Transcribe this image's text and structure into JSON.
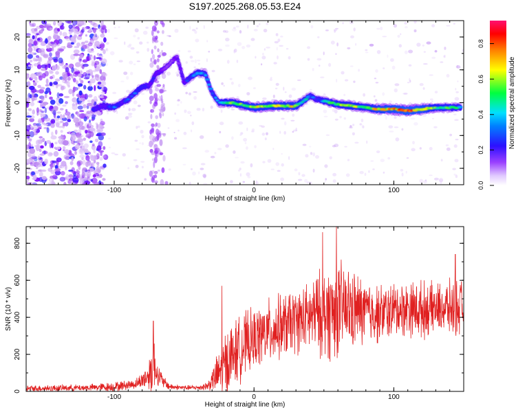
{
  "figure": {
    "title": "S197.2025.268.05.53.E24"
  },
  "colors": {
    "snr_line": "#e02020",
    "colormap": [
      "#f2e6ff",
      "#c090f0",
      "#7a00ff",
      "#2020ff",
      "#00c8ff",
      "#00ff40",
      "#ffff00",
      "#ff8000",
      "#ff0000",
      "#ff1070"
    ]
  },
  "chart_data": [
    {
      "type": "heatmap",
      "name": "spectrogram",
      "xlabel": "Height of straight line (km)",
      "ylabel": "Frequency (Hz)",
      "xlim": [
        -163,
        150
      ],
      "ylim": [
        -25,
        25
      ],
      "xticks": [
        -100,
        0,
        100
      ],
      "xtick_labels": [
        "-100",
        "0",
        "100"
      ],
      "yticks": [
        -20,
        -10,
        0,
        10,
        20
      ],
      "ytick_labels": [
        "-20",
        "-10",
        "0",
        "10",
        "20"
      ],
      "colorbar": {
        "label": "Normalized spectral amplitude",
        "range": [
          0,
          0.93
        ],
        "ticks": [
          0,
          0.2,
          0.4,
          0.6,
          0.8
        ],
        "tick_labels": [
          "0.0",
          "0.2",
          "0.4",
          "0.6",
          "0.8"
        ]
      },
      "ridge": {
        "description": "dominant frequency ridge (Hz) vs height (km) with normalized amplitude",
        "x": [
          -115,
          -108,
          -100,
          -95,
          -90,
          -85,
          -80,
          -75,
          -70,
          -65,
          -60,
          -55,
          -50,
          -45,
          -40,
          -35,
          -30,
          -25,
          -20,
          -15,
          -10,
          -5,
          0,
          10,
          20,
          30,
          40,
          45,
          50,
          60,
          70,
          80,
          90,
          100,
          110,
          120,
          130,
          140,
          148
        ],
        "freq": [
          -2,
          -1,
          -1.5,
          0,
          1,
          3,
          5,
          5,
          9,
          10,
          12,
          14,
          6,
          8,
          9,
          9,
          3,
          0,
          0,
          0,
          -0.5,
          -1,
          -1.5,
          -1,
          -1,
          -1,
          2,
          1,
          0.5,
          -0.5,
          -1,
          -1.5,
          -2,
          -2,
          -2.5,
          -2,
          -1.5,
          -1.5,
          -1.5
        ],
        "amplitude": [
          0.3,
          0.3,
          0.4,
          0.3,
          0.35,
          0.4,
          0.35,
          0.3,
          0.3,
          0.2,
          0.2,
          0.2,
          0.3,
          0.4,
          0.45,
          0.45,
          0.4,
          0.45,
          0.6,
          0.6,
          0.65,
          0.65,
          0.7,
          0.7,
          0.7,
          0.7,
          0.4,
          0.35,
          0.5,
          0.6,
          0.65,
          0.6,
          0.75,
          0.8,
          0.85,
          0.8,
          0.6,
          0.55,
          0.5
        ]
      }
    },
    {
      "type": "line",
      "name": "snr",
      "xlabel": "Height of straight line (km)",
      "ylabel": "SNR (10 * v/v)",
      "xlim": [
        -163,
        150
      ],
      "ylim": [
        0,
        890
      ],
      "xticks": [
        -100,
        0,
        100
      ],
      "xtick_labels": [
        "-100",
        "0",
        "100"
      ],
      "yticks": [
        0,
        200,
        400,
        600,
        800
      ],
      "ytick_labels": [
        "0",
        "200",
        "400",
        "600",
        "800"
      ],
      "envelope": {
        "description": "approximate baseline and oscillation amplitude of the SNR trace",
        "x": [
          -163,
          -140,
          -120,
          -100,
          -85,
          -80,
          -75,
          -72,
          -70,
          -65,
          -60,
          -50,
          -40,
          -33,
          -30,
          -25,
          -20,
          -15,
          -10,
          -5,
          0,
          10,
          20,
          30,
          35,
          40,
          45,
          50,
          55,
          60,
          70,
          80,
          90,
          100,
          110,
          120,
          130,
          140,
          150
        ],
        "base": [
          15,
          18,
          20,
          25,
          40,
          60,
          90,
          150,
          110,
          50,
          25,
          20,
          20,
          30,
          60,
          100,
          150,
          200,
          230,
          260,
          280,
          320,
          350,
          380,
          390,
          400,
          420,
          420,
          430,
          450,
          440,
          430,
          420,
          440,
          450,
          440,
          450,
          450,
          450
        ],
        "amp": [
          20,
          20,
          20,
          30,
          30,
          50,
          100,
          220,
          80,
          40,
          20,
          15,
          15,
          30,
          60,
          150,
          230,
          200,
          200,
          200,
          180,
          200,
          200,
          200,
          200,
          220,
          250,
          280,
          300,
          300,
          250,
          200,
          180,
          170,
          170,
          180,
          150,
          170,
          180
        ]
      },
      "peaks": [
        {
          "x": -72,
          "y": 380
        },
        {
          "x": -23,
          "y": 570
        },
        {
          "x": 49,
          "y": 860
        },
        {
          "x": 59,
          "y": 890
        },
        {
          "x": 144,
          "y": 740
        }
      ]
    }
  ]
}
